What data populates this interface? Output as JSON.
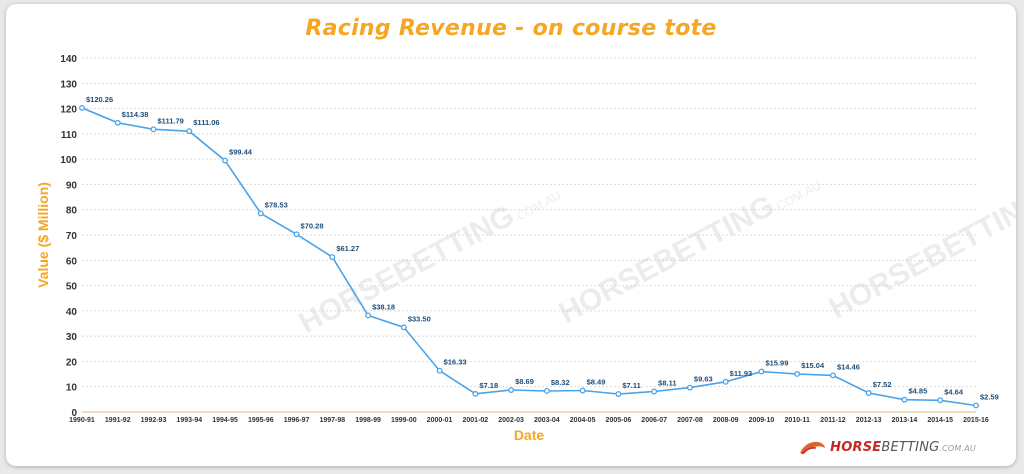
{
  "chart_data": {
    "type": "line",
    "title": "Racing Revenue - on course tote",
    "xlabel": "Date",
    "ylabel": "Value ($ Million)",
    "ylim": [
      0,
      140
    ],
    "yticks": [
      0,
      10,
      20,
      30,
      40,
      50,
      60,
      70,
      80,
      90,
      100,
      110,
      120,
      130,
      140
    ],
    "grid": true,
    "categories": [
      "1990-91",
      "1991-92",
      "1992-93",
      "1993-94",
      "1994-95",
      "1995-96",
      "1996-97",
      "1997-98",
      "1998-99",
      "1999-00",
      "2000-01",
      "2001-02",
      "2002-03",
      "2003-04",
      "2004-05",
      "2005-06",
      "2006-07",
      "2007-08",
      "2008-09",
      "2009-10",
      "2010-11",
      "2011-12",
      "2012-13",
      "2013-14",
      "2014-15",
      "2015-16"
    ],
    "values": [
      120.26,
      114.38,
      111.79,
      111.06,
      99.44,
      78.53,
      70.28,
      61.27,
      38.18,
      33.5,
      16.33,
      7.18,
      8.69,
      8.32,
      8.49,
      7.11,
      8.11,
      9.63,
      11.93,
      15.99,
      15.04,
      14.46,
      7.52,
      4.85,
      4.64,
      2.59
    ],
    "data_labels": [
      "$120.26",
      "$114.38",
      "$111.79",
      "$111.06",
      "$99.44",
      "$78.53",
      "$70.28",
      "$61.27",
      "$38.18",
      "$33.50",
      "$16.33",
      "$7.18",
      "$8.69",
      "$8.32",
      "$8.49",
      "$7.11",
      "$8.11",
      "$9.63",
      "$11.93",
      "$15.99",
      "$15.04",
      "$14.46",
      "$7.52",
      "$4.85",
      "$4.64",
      "$2.59"
    ],
    "colors": {
      "line": "#4aa3e8",
      "title": "#f5a623",
      "axis_label": "#f5a623",
      "data_label": "#1f4e79"
    }
  },
  "watermark": {
    "text": "HORSEBETTING",
    "suffix": ".COM.AU"
  },
  "logo": {
    "part1": "HORSE",
    "part2": "BETTING",
    "suffix": ".COM.AU",
    "icon": "horse-head-icon"
  }
}
